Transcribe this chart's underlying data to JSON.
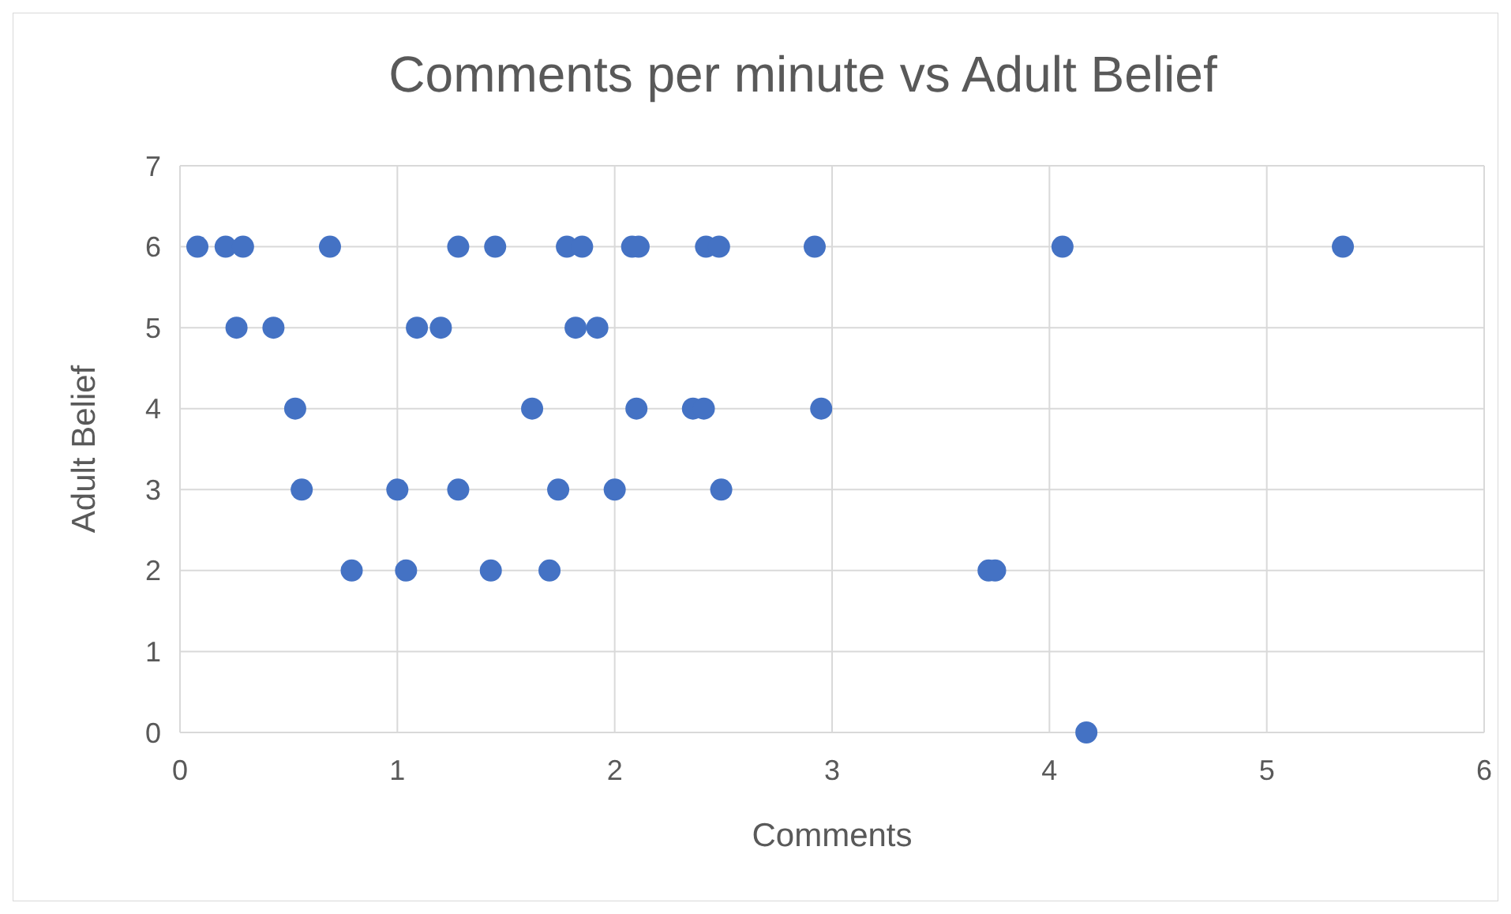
{
  "chart_data": {
    "type": "scatter",
    "title": "Comments per minute vs Adult Belief",
    "xlabel": "Comments",
    "ylabel": "Adult Belief",
    "x": [
      0.08,
      0.21,
      0.29,
      0.69,
      1.28,
      1.45,
      1.78,
      1.85,
      2.08,
      2.11,
      2.42,
      2.48,
      2.92,
      4.06,
      5.35,
      0.26,
      0.43,
      1.09,
      1.2,
      1.82,
      1.92,
      0.53,
      1.62,
      2.1,
      2.36,
      2.41,
      2.95,
      0.56,
      1.0,
      1.28,
      1.74,
      2.0,
      2.49,
      0.79,
      1.04,
      1.43,
      1.7,
      3.72,
      3.75,
      4.17
    ],
    "values": [
      6,
      6,
      6,
      6,
      6,
      6,
      6,
      6,
      6,
      6,
      6,
      6,
      6,
      6,
      6,
      5,
      5,
      5,
      5,
      5,
      5,
      4,
      4,
      4,
      4,
      4,
      4,
      3,
      3,
      3,
      3,
      3,
      3,
      2,
      2,
      2,
      2,
      2,
      2,
      0
    ],
    "color": "#4472c4",
    "marker": "circle",
    "xlim": [
      0,
      6
    ],
    "xticks": [
      0,
      1,
      2,
      3,
      4,
      5,
      6
    ],
    "ylim": [
      0,
      7
    ],
    "yticks": [
      0,
      1,
      2,
      3,
      4,
      5,
      6,
      7
    ],
    "grid": true
  }
}
